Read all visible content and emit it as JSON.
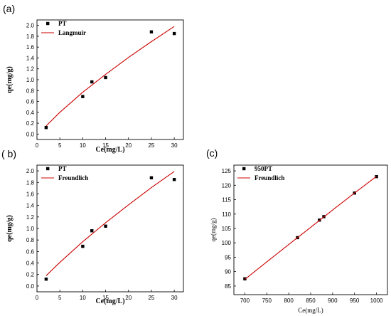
{
  "panels": [
    {
      "label": "(a)"
    },
    {
      "label": "( b)"
    },
    {
      "label": "(c)"
    }
  ],
  "chart_data": [
    {
      "type": "scatter",
      "xlabel": "Ce(mg/L)",
      "ylabel": "qe(mg/g)",
      "xlim": [
        0,
        32
      ],
      "ylim": [
        -0.1,
        2.1
      ],
      "xticks": [
        0,
        5,
        10,
        15,
        20,
        25,
        30
      ],
      "yticks": [
        0.0,
        0.2,
        0.4,
        0.6,
        0.8,
        1.0,
        1.2,
        1.4,
        1.6,
        1.8,
        2.0
      ],
      "grid": false,
      "legend_position": "top-left",
      "series": [
        {
          "name": "PT",
          "kind": "points",
          "color": "#000000",
          "x": [
            2,
            10,
            12,
            15,
            25,
            30
          ],
          "y": [
            0.12,
            0.69,
            0.96,
            1.04,
            1.88,
            1.85
          ]
        },
        {
          "name": "Langmuir",
          "kind": "line",
          "color": "#cc0000",
          "x": [
            2,
            5,
            10,
            15,
            20,
            25,
            30
          ],
          "y": [
            0.15,
            0.4,
            0.77,
            1.1,
            1.41,
            1.7,
            1.98
          ]
        }
      ]
    },
    {
      "type": "scatter",
      "xlabel": "Ce(mg/L)",
      "ylabel": "qe(mg/g)",
      "xlim": [
        0,
        32
      ],
      "ylim": [
        -0.1,
        2.1
      ],
      "xticks": [
        0,
        5,
        10,
        15,
        20,
        25,
        30
      ],
      "yticks": [
        0.0,
        0.2,
        0.4,
        0.6,
        0.8,
        1.0,
        1.2,
        1.4,
        1.6,
        1.8,
        2.0
      ],
      "grid": false,
      "legend_position": "top-left",
      "series": [
        {
          "name": "PT",
          "kind": "points",
          "color": "#000000",
          "x": [
            2,
            10,
            12,
            15,
            25,
            30
          ],
          "y": [
            0.12,
            0.69,
            0.96,
            1.04,
            1.88,
            1.85
          ]
        },
        {
          "name": "Freundlich",
          "kind": "line",
          "color": "#cc0000",
          "x": [
            2,
            5,
            10,
            15,
            20,
            25,
            30
          ],
          "y": [
            0.18,
            0.41,
            0.77,
            1.1,
            1.41,
            1.71,
            1.99
          ]
        }
      ]
    },
    {
      "type": "scatter",
      "xlabel": "Ce(mg/L)",
      "ylabel": "qe(mg/g)",
      "xlim": [
        675,
        1025
      ],
      "ylim": [
        82,
        127
      ],
      "xticks": [
        700,
        750,
        800,
        850,
        900,
        950,
        1000
      ],
      "yticks": [
        85,
        90,
        95,
        100,
        105,
        110,
        115,
        120,
        125
      ],
      "grid": false,
      "legend_position": "top-left",
      "series": [
        {
          "name": "950PT",
          "kind": "points",
          "color": "#000000",
          "x": [
            700,
            820,
            870,
            880,
            950,
            1000
          ],
          "y": [
            87.5,
            101.8,
            107.9,
            109.1,
            117.3,
            123
          ]
        },
        {
          "name": "Freundlich",
          "kind": "line",
          "color": "#cc0000",
          "x": [
            700,
            750,
            800,
            850,
            900,
            950,
            1000
          ],
          "y": [
            87.3,
            93.4,
            99.4,
            105.4,
            111.4,
            117.3,
            123.1
          ]
        }
      ]
    }
  ]
}
